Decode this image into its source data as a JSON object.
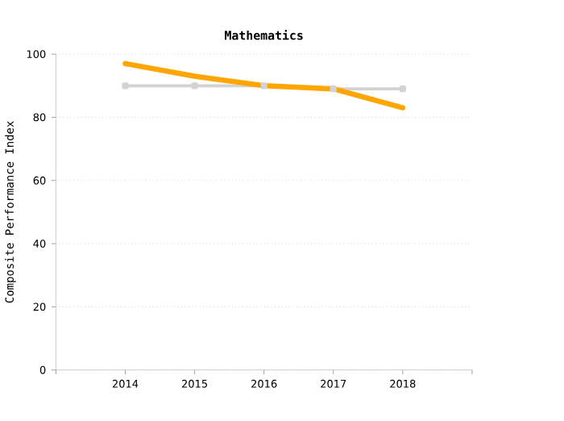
{
  "chart_data": {
    "type": "line",
    "title": "Mathematics",
    "ylabel": "Composite Performance Index",
    "categories": [
      "2014",
      "2015",
      "2016",
      "2017",
      "2018"
    ],
    "series": [
      {
        "color": "#d3d3d3",
        "values": [
          90,
          90,
          90,
          89,
          89
        ],
        "marker": "square"
      },
      {
        "color": "#ffa500",
        "values": [
          97,
          93,
          90,
          89,
          83
        ],
        "marker": "none"
      }
    ],
    "ylim": [
      0,
      100
    ],
    "yticks": [
      0,
      20,
      40,
      60,
      80,
      100
    ],
    "grid": "y"
  }
}
